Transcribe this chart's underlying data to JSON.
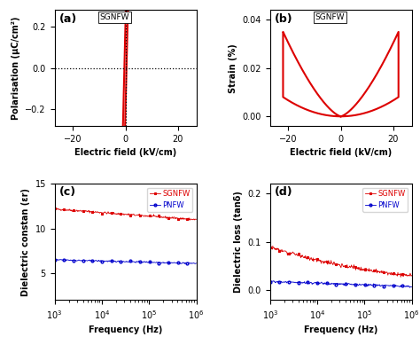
{
  "panel_a": {
    "label": "(a)",
    "legend": "SGNFW",
    "xlabel": "Electric field (kV/cm)",
    "ylabel": "Polarisation (μC/cm²)",
    "xlim": [
      -27,
      27
    ],
    "ylim": [
      -0.28,
      0.28
    ],
    "xticks": [
      -20,
      0,
      20
    ],
    "yticks": [
      -0.2,
      0.0,
      0.2
    ],
    "color": "#dd0000"
  },
  "panel_b": {
    "label": "(b)",
    "legend": "SGNFW",
    "xlabel": "Electric field (kV/cm)",
    "ylabel": "Strain (%)",
    "xlim": [
      -27,
      27
    ],
    "ylim": [
      -0.004,
      0.044
    ],
    "xticks": [
      -20,
      0,
      20
    ],
    "yticks": [
      0.0,
      0.02,
      0.04
    ],
    "color": "#dd0000"
  },
  "panel_c": {
    "label": "(c)",
    "legend_red": "SGNFW",
    "legend_blue": "PNFW",
    "xlabel": "Frequency (Hz)",
    "ylabel": "Dielectric constan (εr)",
    "ylim": [
      2,
      15
    ],
    "yticks": [
      5,
      10,
      15
    ],
    "color_red": "#dd0000",
    "color_blue": "#0000cc",
    "red_start": 12.2,
    "red_end": 11.0,
    "blue_start": 6.5,
    "blue_end": 6.1
  },
  "panel_d": {
    "label": "(d)",
    "legend_red": "SGNFW",
    "legend_blue": "PNFW",
    "xlabel": "Frequency (Hz)",
    "ylabel": "Dielectric loss (tanδ)",
    "ylim": [
      -0.02,
      0.22
    ],
    "yticks": [
      0.0,
      0.1,
      0.2
    ],
    "color_red": "#dd0000",
    "color_blue": "#0000cc",
    "red_start": 0.09,
    "red_end": 0.03,
    "blue_start": 0.018,
    "blue_end": 0.008
  }
}
